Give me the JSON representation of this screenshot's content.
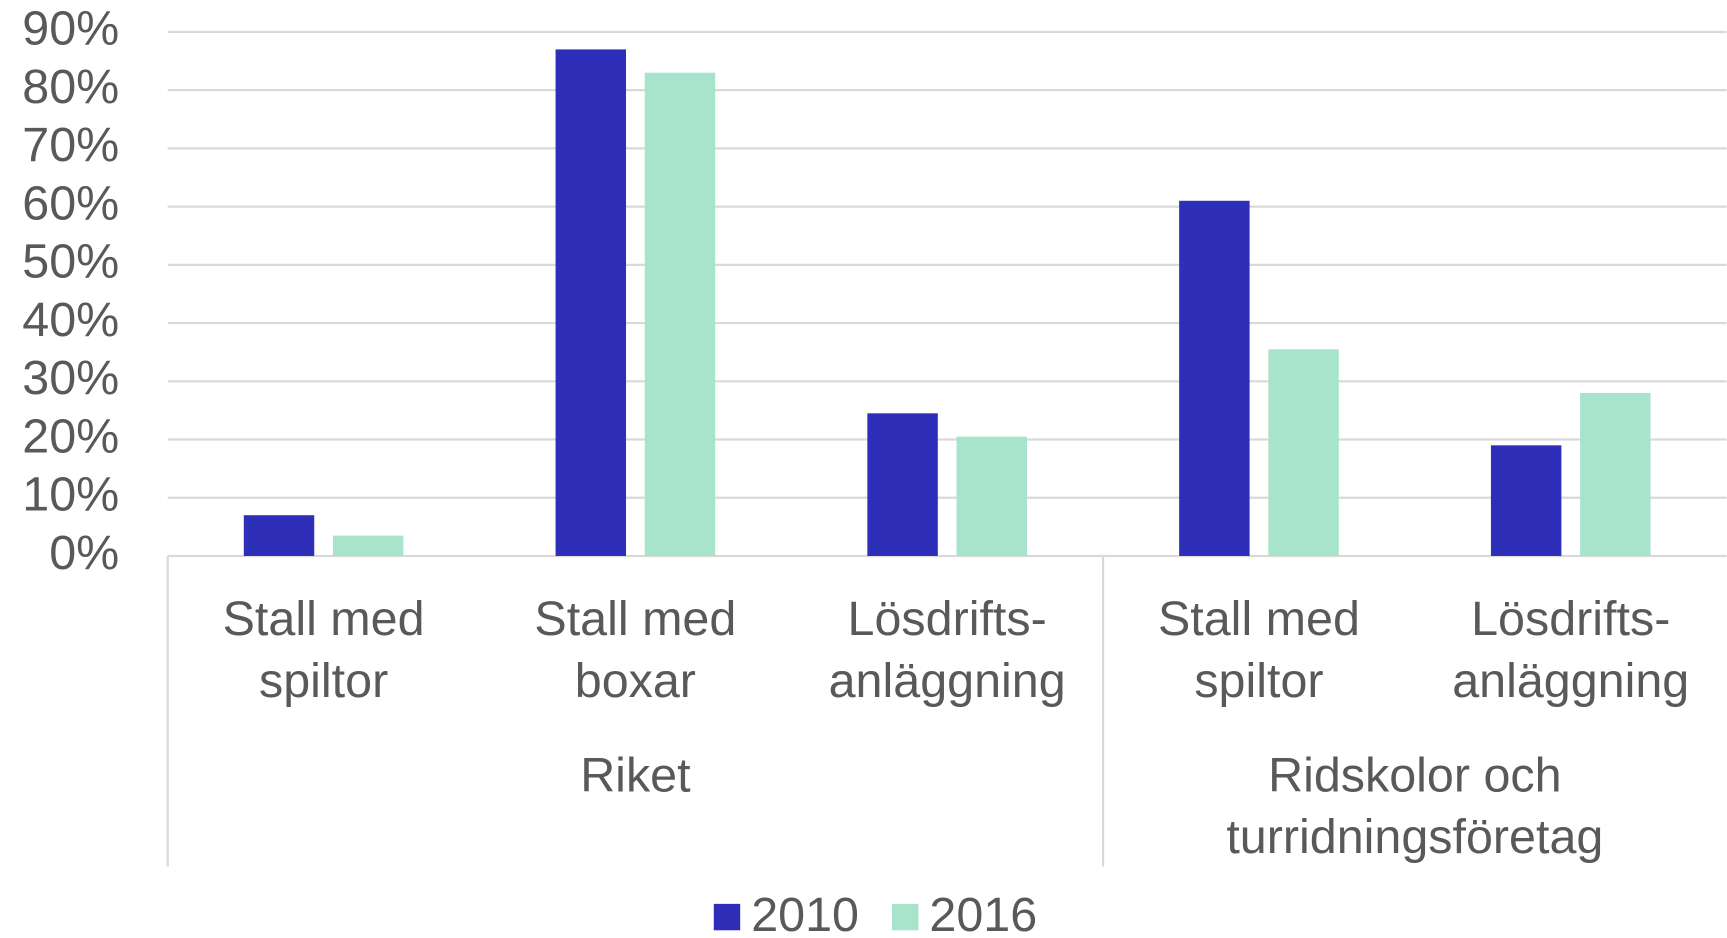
{
  "chart_data": {
    "type": "bar",
    "categories": [
      "Stall med spiltor",
      "Stall med boxar",
      "Lösdrifts-anläggning",
      "Stall med spiltor",
      "Lösdrifts-anläggning"
    ],
    "groups": [
      {
        "name": "Riket",
        "size": 3
      },
      {
        "name": "Ridskolor och turridningsföretag",
        "size": 2
      }
    ],
    "series": [
      {
        "name": "2010",
        "color": "#2e2eb8",
        "values": [
          7,
          87,
          24.5,
          61,
          19
        ]
      },
      {
        "name": "2016",
        "color": "#a8e4cc",
        "values": [
          3.5,
          83,
          20.5,
          35.5,
          28
        ]
      }
    ],
    "ylim": [
      0,
      90
    ],
    "yticks": [
      {
        "value": 0,
        "label": "0%"
      },
      {
        "value": 10,
        "label": "10%"
      },
      {
        "value": 20,
        "label": "20%"
      },
      {
        "value": 30,
        "label": "30%"
      },
      {
        "value": 40,
        "label": "40%"
      },
      {
        "value": 50,
        "label": "50%"
      },
      {
        "value": 60,
        "label": "60%"
      },
      {
        "value": 70,
        "label": "70%"
      },
      {
        "value": 80,
        "label": "80%"
      },
      {
        "value": 90,
        "label": "90%"
      }
    ],
    "grid": true,
    "legend": "bottom"
  }
}
